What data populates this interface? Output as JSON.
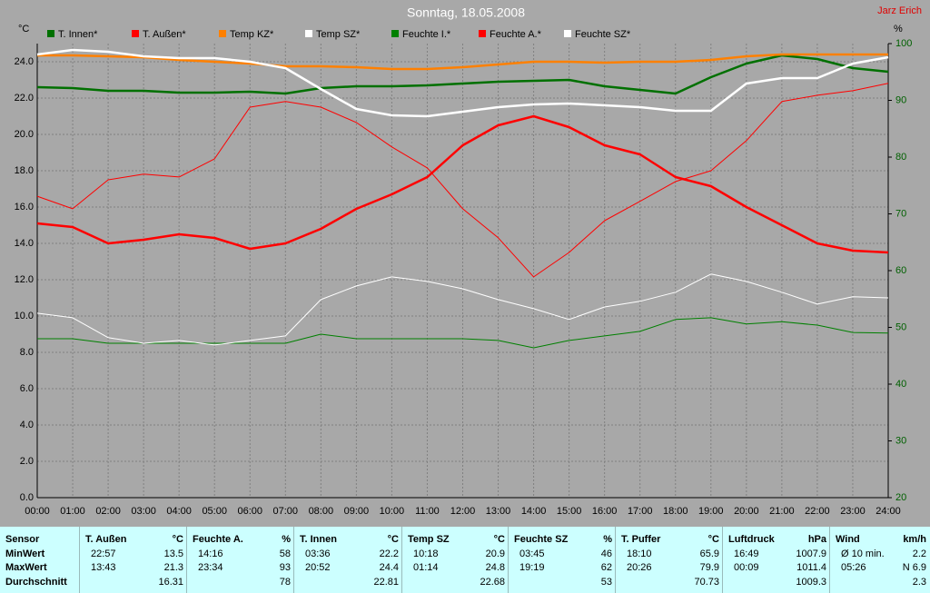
{
  "chart_data": {
    "type": "line",
    "title": "Sonntag, 18.05.2008",
    "annotation": "Jarz Erich",
    "ylabel": "°C",
    "y2label": "%",
    "x": [
      0,
      1,
      2,
      3,
      4,
      5,
      6,
      7,
      8,
      9,
      10,
      11,
      12,
      13,
      14,
      15,
      16,
      17,
      18,
      19,
      20,
      21,
      22,
      23,
      24
    ],
    "xlim": [
      0,
      24
    ],
    "xticks": [
      {
        "value": 0,
        "label": "00:00"
      },
      {
        "value": 1,
        "label": "01:00"
      },
      {
        "value": 2,
        "label": "02:00"
      },
      {
        "value": 3,
        "label": "03:00"
      },
      {
        "value": 4,
        "label": "04:00"
      },
      {
        "value": 5,
        "label": "05:00"
      },
      {
        "value": 6,
        "label": "06:00"
      },
      {
        "value": 7,
        "label": "07:00"
      },
      {
        "value": 8,
        "label": "08:00"
      },
      {
        "value": 9,
        "label": "09:00"
      },
      {
        "value": 10,
        "label": "10:00"
      },
      {
        "value": 11,
        "label": "11:00"
      },
      {
        "value": 12,
        "label": "12:00"
      },
      {
        "value": 13,
        "label": "13:00"
      },
      {
        "value": 14,
        "label": "14:00"
      },
      {
        "value": 15,
        "label": "15:00"
      },
      {
        "value": 16,
        "label": "16:00"
      },
      {
        "value": 17,
        "label": "17:00"
      },
      {
        "value": 18,
        "label": "18:00"
      },
      {
        "value": 19,
        "label": "19:00"
      },
      {
        "value": 20,
        "label": "20:00"
      },
      {
        "value": 21,
        "label": "21:00"
      },
      {
        "value": 22,
        "label": "22:00"
      },
      {
        "value": 23,
        "label": "23:00"
      },
      {
        "value": 24,
        "label": "24:00"
      }
    ],
    "ylim": [
      0,
      25
    ],
    "yticks": [
      {
        "value": 0,
        "label": "0.0"
      },
      {
        "value": 2,
        "label": "2.0"
      },
      {
        "value": 4,
        "label": "4.0"
      },
      {
        "value": 6,
        "label": "6.0"
      },
      {
        "value": 8,
        "label": "8.0"
      },
      {
        "value": 10,
        "label": "10.0"
      },
      {
        "value": 12,
        "label": "12.0"
      },
      {
        "value": 14,
        "label": "14.0"
      },
      {
        "value": 16,
        "label": "16.0"
      },
      {
        "value": 18,
        "label": "18.0"
      },
      {
        "value": 20,
        "label": "20.0"
      },
      {
        "value": 22,
        "label": "22.0"
      },
      {
        "value": 24,
        "label": "24.0"
      }
    ],
    "y2lim": [
      20,
      100
    ],
    "y2ticks": [
      20,
      30,
      40,
      50,
      60,
      70,
      80,
      90,
      100
    ],
    "grid": true,
    "series": [
      {
        "name": "T. Innen*",
        "color": "#007000",
        "values": [
          22.6,
          22.55,
          22.4,
          22.4,
          22.3,
          22.3,
          22.35,
          22.25,
          22.55,
          22.65,
          22.65,
          22.7,
          22.8,
          22.9,
          22.95,
          23.0,
          22.65,
          22.45,
          22.25,
          23.15,
          23.9,
          24.35,
          24.15,
          23.65,
          23.45
        ]
      },
      {
        "name": "T. Außen*",
        "color": "#ff0000",
        "values": [
          15.1,
          14.9,
          14.0,
          14.2,
          14.5,
          14.3,
          13.7,
          14.0,
          14.8,
          15.9,
          16.7,
          17.65,
          19.4,
          20.5,
          21.0,
          20.4,
          19.4,
          18.9,
          17.65,
          17.15,
          16.0,
          15.0,
          14.0,
          13.6,
          13.5
        ]
      },
      {
        "name": "Temp KZ*",
        "color": "#ff8000",
        "values": [
          24.35,
          24.35,
          24.3,
          24.25,
          24.1,
          24.0,
          23.9,
          23.75,
          23.75,
          23.7,
          23.6,
          23.6,
          23.7,
          23.85,
          24.0,
          24.0,
          23.95,
          24.0,
          24.0,
          24.1,
          24.3,
          24.4,
          24.4,
          24.4,
          24.4
        ]
      },
      {
        "name": "Temp SZ*",
        "color": "#ffffff",
        "values": [
          24.4,
          24.65,
          24.55,
          24.3,
          24.2,
          24.2,
          24.0,
          23.65,
          22.5,
          21.4,
          21.05,
          21.0,
          21.25,
          21.5,
          21.65,
          21.7,
          21.6,
          21.5,
          21.3,
          21.3,
          22.8,
          23.1,
          23.1,
          23.9,
          24.25
        ]
      },
      {
        "name": "Feuchte I.*",
        "color": "#008000",
        "axis": "y2",
        "values": [
          48.0,
          48.0,
          47.2,
          47.2,
          47.2,
          47.2,
          47.2,
          47.2,
          48.8,
          48.0,
          48.0,
          48.0,
          48.0,
          47.7,
          46.4,
          47.7,
          48.5,
          49.3,
          51.4,
          51.7,
          50.6,
          51.0,
          50.4,
          49.1,
          49.0
        ]
      },
      {
        "name": "Feuchte A.*",
        "color": "#ff0000",
        "axis": "y2",
        "values": [
          73.1,
          70.9,
          76.0,
          77.0,
          76.5,
          79.7,
          88.8,
          89.8,
          88.8,
          86.1,
          81.8,
          78.1,
          70.9,
          65.8,
          58.9,
          63.2,
          68.8,
          72.2,
          75.7,
          77.6,
          82.9,
          89.8,
          90.9,
          91.7,
          93.0
        ]
      },
      {
        "name": "Feuchte SZ*",
        "color": "#ffffff",
        "axis": "y2",
        "values": [
          52.5,
          51.7,
          48.2,
          47.2,
          47.7,
          46.9,
          47.7,
          48.5,
          54.9,
          57.3,
          58.9,
          58.1,
          56.8,
          54.9,
          53.3,
          51.4,
          53.6,
          54.6,
          56.2,
          59.4,
          58.1,
          56.2,
          54.1,
          55.4,
          55.2
        ]
      }
    ]
  },
  "table": {
    "row_header": "Sensor",
    "row_labels": [
      "MinWert",
      "MaxWert",
      "Durchschnitt"
    ],
    "groups": [
      {
        "name": "T. Außen",
        "unit": "°C",
        "min": [
          "22:57",
          "13.5"
        ],
        "max": [
          "13:43",
          "21.3"
        ],
        "avg": "16.31"
      },
      {
        "name": "Feuchte A.",
        "unit": "%",
        "min": [
          "14:16",
          "58"
        ],
        "max": [
          "23:34",
          "93"
        ],
        "avg": "78"
      },
      {
        "name": "T. Innen",
        "unit": "°C",
        "min": [
          "03:36",
          "22.2"
        ],
        "max": [
          "20:52",
          "24.4"
        ],
        "avg": "22.81"
      },
      {
        "name": "Temp SZ",
        "unit": "°C",
        "min": [
          "10:18",
          "20.9"
        ],
        "max": [
          "01:14",
          "24.8"
        ],
        "avg": "22.68"
      },
      {
        "name": "Feuchte SZ",
        "unit": "%",
        "min": [
          "03:45",
          "46"
        ],
        "max": [
          "19:19",
          "62"
        ],
        "avg": "53"
      },
      {
        "name": "T. Puffer",
        "unit": "°C",
        "min": [
          "18:10",
          "65.9"
        ],
        "max": [
          "20:26",
          "79.9"
        ],
        "avg": "70.73"
      },
      {
        "name": "Luftdruck",
        "unit": "hPa",
        "min": [
          "16:49",
          "1007.9"
        ],
        "max": [
          "00:09",
          "1011.4"
        ],
        "avg": "1009.3"
      },
      {
        "name": "Wind",
        "unit": "km/h",
        "min": [
          "Ø 10 min.",
          "2.2"
        ],
        "max": [
          "05:26",
          "N 6.9"
        ],
        "avg": "2.3"
      }
    ]
  }
}
